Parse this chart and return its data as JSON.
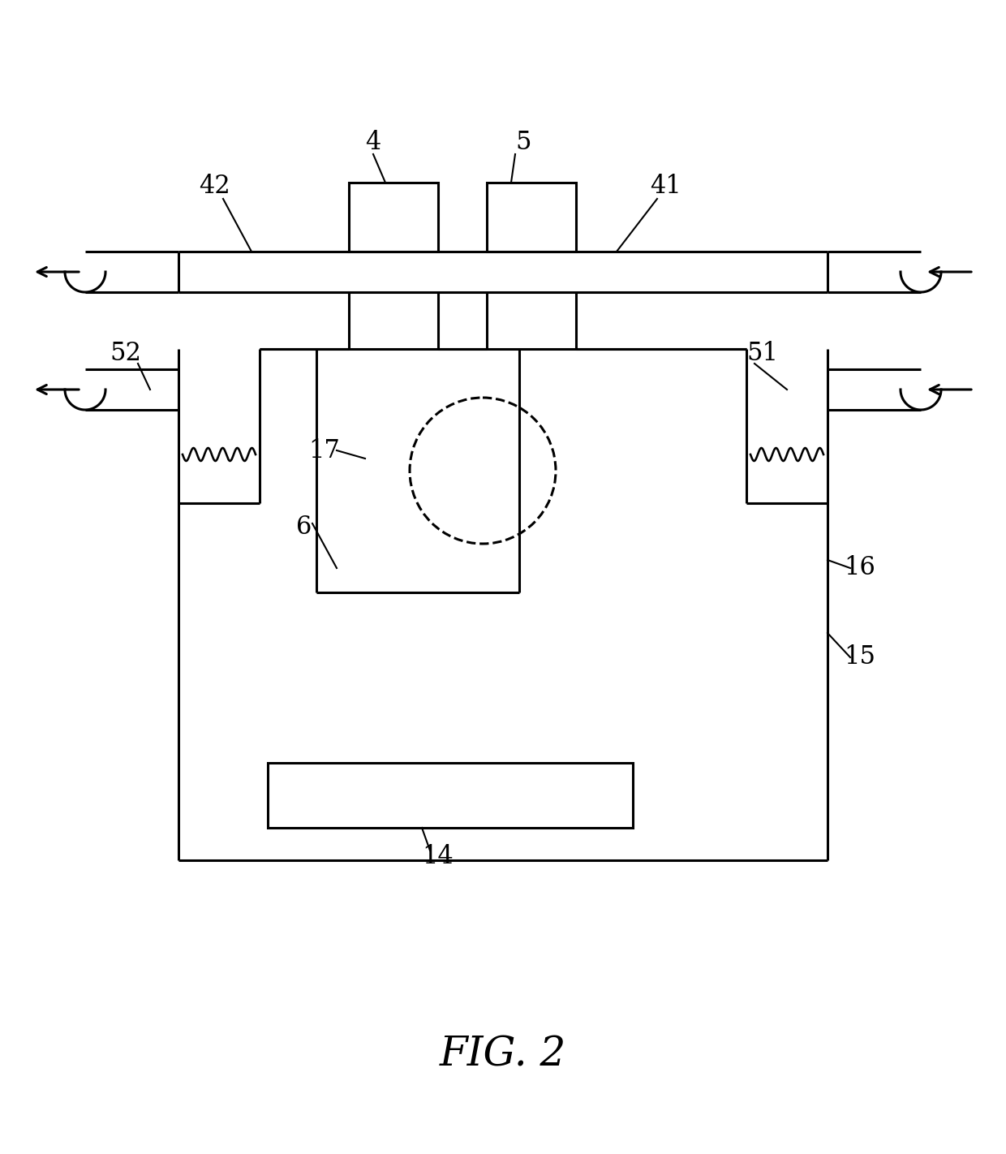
{
  "fig_label": "FIG. 2",
  "bg": "#ffffff",
  "lc": "#000000",
  "lw": 2.2,
  "figsize": [
    12.4,
    14.22
  ],
  "dpi": 100
}
